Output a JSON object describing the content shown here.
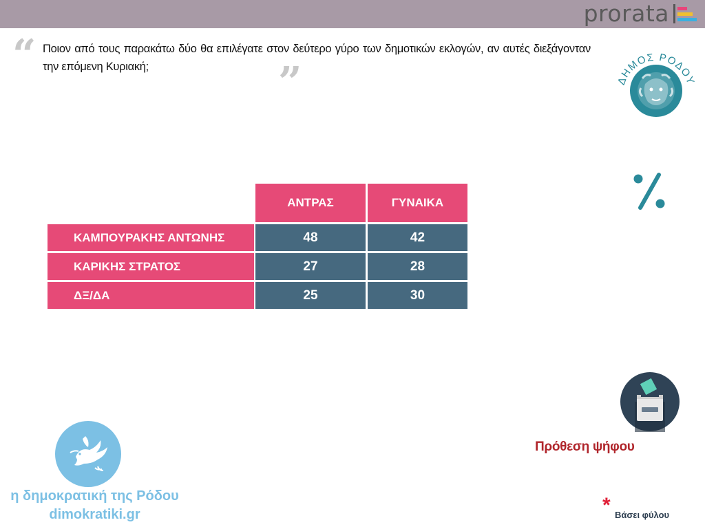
{
  "brand": {
    "name": "prorata"
  },
  "question": "Ποιον από τους παρακάτω δύο θα επιλέγατε στον δεύτερο γύρο των δημοτικών εκλογών, αν αυτές διεξάγονταν την επόμενη Κυριακή;",
  "seal": {
    "text": "ΔΗΜΟΣ ΡΟΔΟΥ"
  },
  "percent_icon": "percent-icon",
  "table": {
    "columns": [
      "ΑΝΤΡΑΣ",
      "ΓΥΝΑΙΚΑ"
    ],
    "rows": [
      {
        "label": "ΚΑΜΠΟΥΡΑΚΗΣ ΑΝΤΩΝΗΣ",
        "values": [
          "48",
          "42"
        ]
      },
      {
        "label": "ΚΑΡΙΚΗΣ ΣΤΡΑΤΟΣ",
        "values": [
          "27",
          "28"
        ]
      },
      {
        "label": "ΔΞ/ΔΑ",
        "values": [
          "25",
          "30"
        ]
      }
    ]
  },
  "vote_intent": {
    "label": "Πρόθεση ψήφου",
    "icon": "ballot-box-icon"
  },
  "footnote": {
    "marker": "*",
    "text": "Βάσει φύλου"
  },
  "site": {
    "name": "η δημοκρατική της Ρόδου",
    "url": "dimokratiki.gr"
  },
  "colors": {
    "header_bar": "#a89aa6",
    "pink": "#e64a77",
    "slate": "#46697f",
    "teal": "#2a8a9a",
    "dark_red": "#b0252b",
    "light_blue": "#7cc0e4"
  }
}
